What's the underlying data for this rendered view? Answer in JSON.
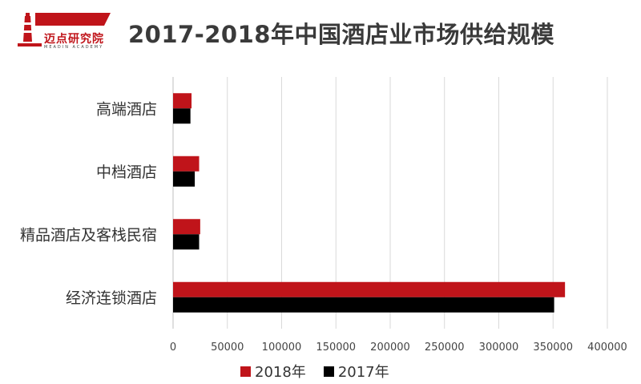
{
  "logo": {
    "text": "迈点研究院",
    "subtext": "MEADIN ACADEMY",
    "color": "#c0141a"
  },
  "title": "2017-2018年中国酒店业市场供给规模",
  "chart_data": {
    "type": "bar",
    "orientation": "horizontal",
    "categories": [
      "高端酒店",
      "中档酒店",
      "精品酒店及客栈民宿",
      "经济连锁酒店"
    ],
    "series": [
      {
        "name": "2018年",
        "color": "#c0141a",
        "values": [
          17000,
          24000,
          25000,
          361000
        ]
      },
      {
        "name": "2017年",
        "color": "#000000",
        "values": [
          16000,
          20000,
          24000,
          351000
        ]
      }
    ],
    "xlim": [
      0,
      400000
    ],
    "xticks": [
      0,
      50000,
      100000,
      150000,
      200000,
      250000,
      300000,
      350000,
      400000
    ],
    "grid": true,
    "legend_position": "bottom"
  }
}
